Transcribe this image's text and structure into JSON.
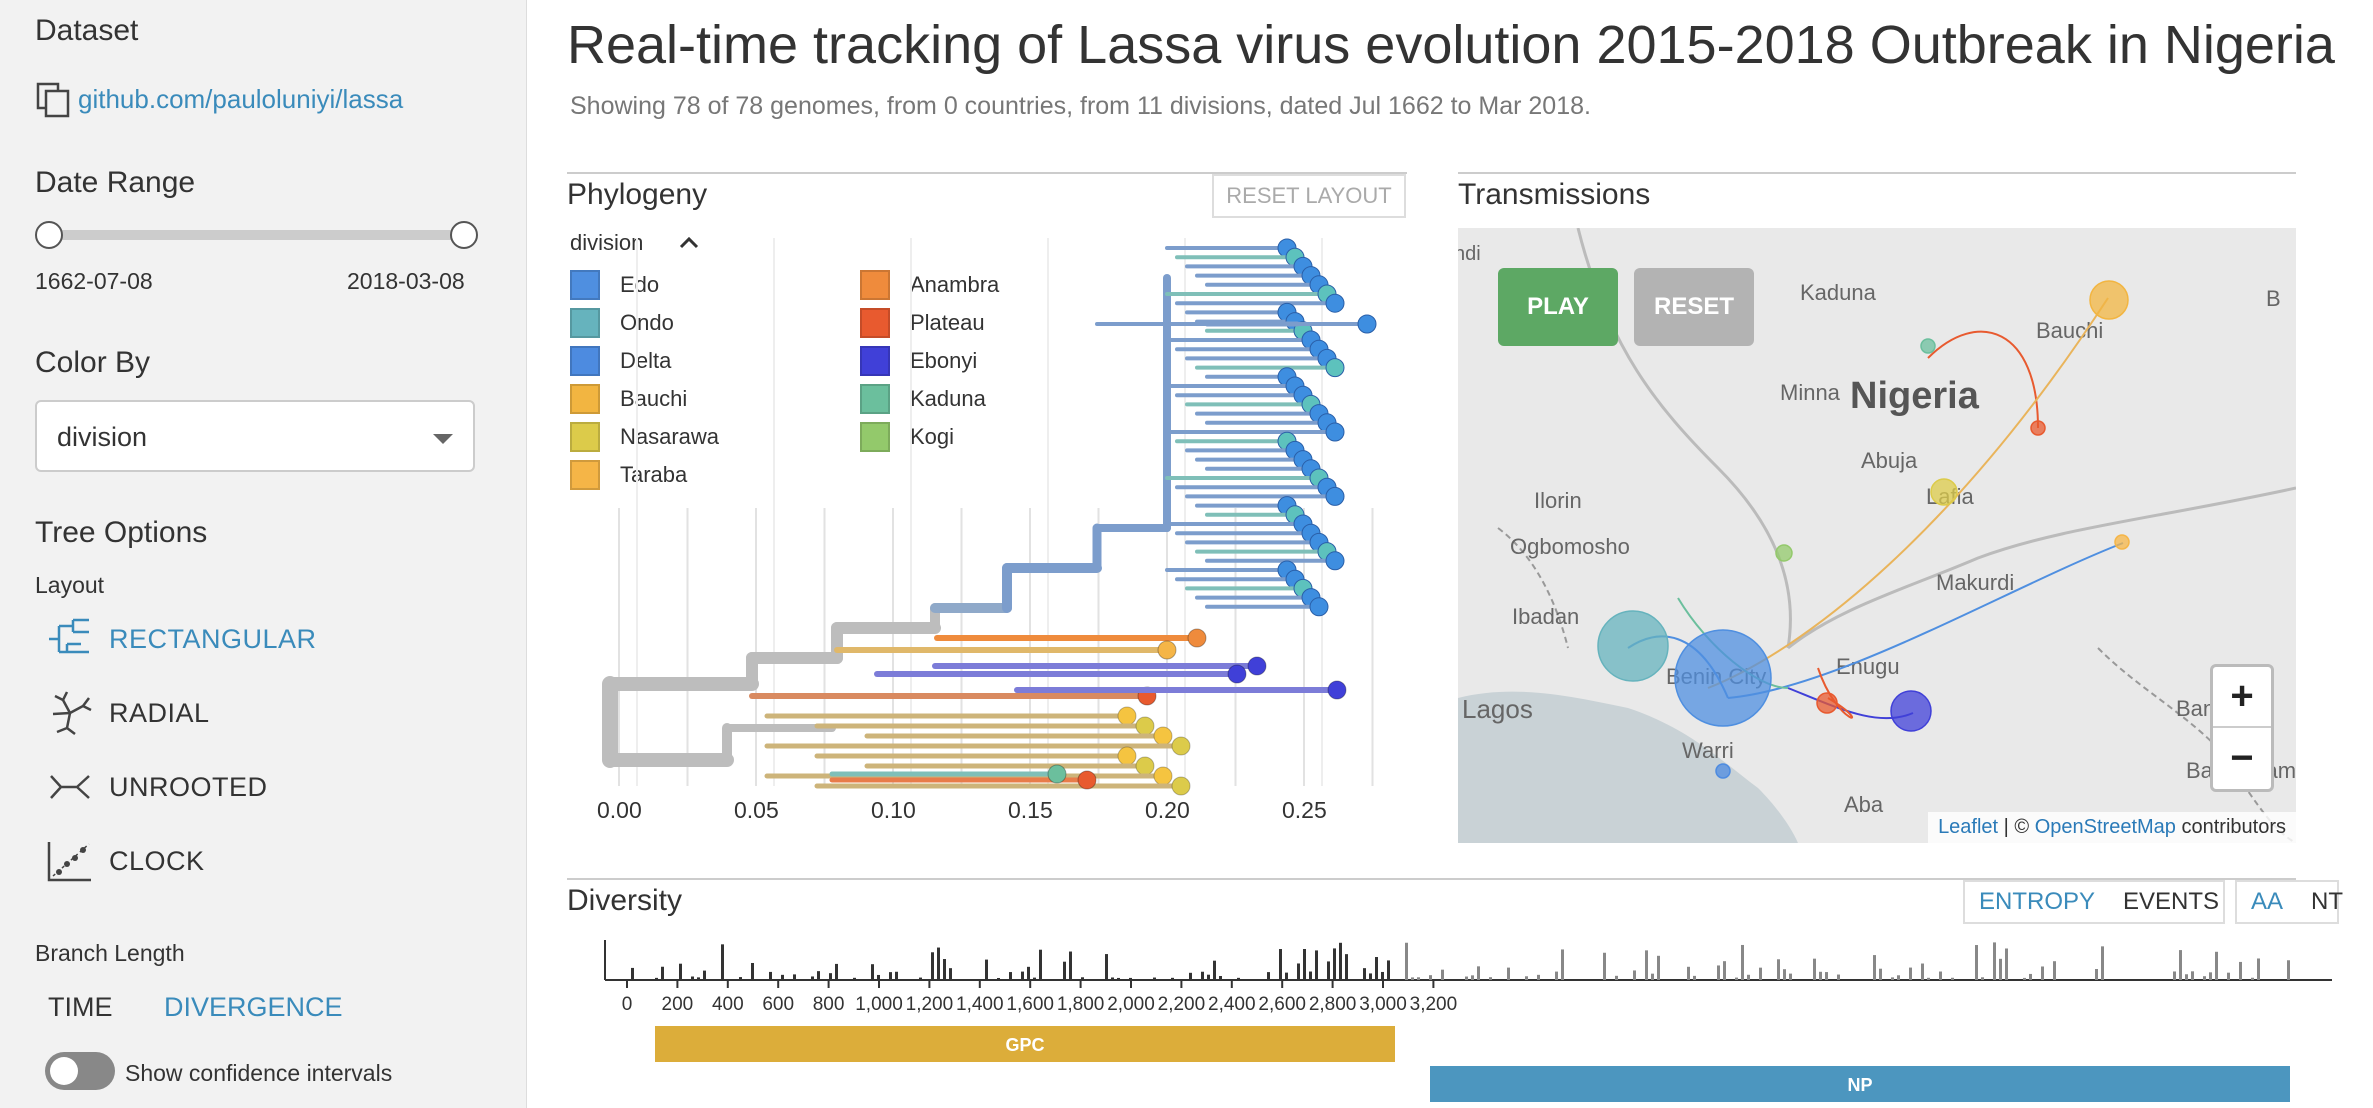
{
  "sidebar": {
    "dataset_heading": "Dataset",
    "dataset_link": "github.com/pauloluniyi/lassa",
    "date_range_heading": "Date Range",
    "date_start": "1662-07-08",
    "date_end": "2018-03-08",
    "color_by_heading": "Color By",
    "color_by_value": "division",
    "tree_options_heading": "Tree Options",
    "layout_label": "Layout",
    "layouts": [
      {
        "label": "RECTANGULAR",
        "selected": true,
        "icon": "rectangular-tree-icon"
      },
      {
        "label": "RADIAL",
        "selected": false,
        "icon": "radial-tree-icon"
      },
      {
        "label": "UNROOTED",
        "selected": false,
        "icon": "unrooted-tree-icon"
      },
      {
        "label": "CLOCK",
        "selected": false,
        "icon": "clock-tree-icon"
      }
    ],
    "branch_length_label": "Branch Length",
    "branch_time": "TIME",
    "branch_divergence": "DIVERGENCE",
    "confidence_label": "Show confidence intervals"
  },
  "header": {
    "title": "Real-time tracking of Lassa virus evolution 2015-2018 Outbreak in Nigeria",
    "subtitle": "Showing 78 of 78 genomes, from 0 countries, from 11 divisions, dated Jul 1662 to Mar 2018."
  },
  "phylogeny": {
    "title": "Phylogeny",
    "reset_layout": "RESET LAYOUT",
    "legend_title": "division",
    "legend": [
      {
        "name": "Edo",
        "color": "#4f8fe0"
      },
      {
        "name": "Ondo",
        "color": "#66b3bd"
      },
      {
        "name": "Delta",
        "color": "#4d8be0"
      },
      {
        "name": "Bauchi",
        "color": "#f2b541"
      },
      {
        "name": "Nasarawa",
        "color": "#dccb4a"
      },
      {
        "name": "Taraba",
        "color": "#f5b547"
      },
      {
        "name": "Anambra",
        "color": "#ef8b3c"
      },
      {
        "name": "Plateau",
        "color": "#e85a2f"
      },
      {
        "name": "Ebonyi",
        "color": "#4040d8"
      },
      {
        "name": "Kaduna",
        "color": "#6bbf9d"
      },
      {
        "name": "Kogi",
        "color": "#93c96b"
      }
    ],
    "x_ticks": [
      "0.00",
      "0.05",
      "0.10",
      "0.15",
      "0.20",
      "0.25"
    ]
  },
  "transmissions": {
    "title": "Transmissions",
    "play": "PLAY",
    "reset": "RESET",
    "places": [
      "ndi",
      "Kaduna",
      "Bauchi",
      "B",
      "Minna",
      "Nigeria",
      "Abuja",
      "Lafia",
      "Ilorin",
      "Ogbomosho",
      "Makurdi",
      "Ibadan",
      "Benin City",
      "Enugu",
      "Lagos",
      "Bamenda",
      "Warri",
      "Bafoussam",
      "Aba"
    ],
    "zoom_in": "+",
    "zoom_out": "−",
    "attrib_leaflet": "Leaflet",
    "attrib_sep": " | © ",
    "attrib_osm": "OpenStreetMap",
    "attrib_rest": " contributors"
  },
  "diversity": {
    "title": "Diversity",
    "entropy": "ENTROPY",
    "events": "EVENTS",
    "aa": "AA",
    "nt": "NT",
    "x_ticks": [
      "0",
      "200",
      "400",
      "600",
      "800",
      "1,000",
      "1,200",
      "1,400",
      "1,600",
      "1,800",
      "2,000",
      "2,200",
      "2,400",
      "2,600",
      "2,800",
      "3,000",
      "3,200"
    ],
    "genes": [
      {
        "name": "GPC",
        "color": "#dcad3a"
      },
      {
        "name": "NP",
        "color": "#4c96bf"
      }
    ]
  }
}
